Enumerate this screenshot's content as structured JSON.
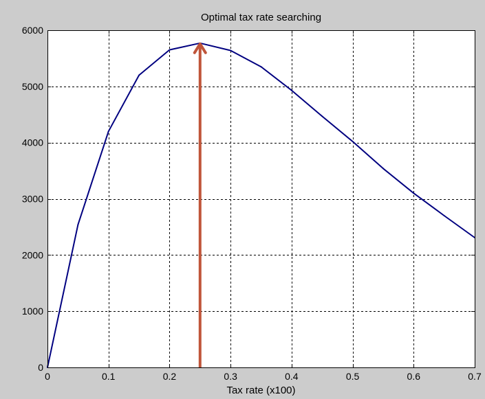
{
  "chart_data": {
    "type": "line",
    "title": "Optimal tax rate searching",
    "xlabel": "Tax rate (x100)",
    "ylabel": "",
    "xlim": [
      0,
      0.7
    ],
    "ylim": [
      0,
      6000
    ],
    "xticks": [
      0,
      0.1,
      0.2,
      0.3,
      0.4,
      0.5,
      0.6,
      0.7
    ],
    "xtick_labels": [
      "0",
      "0.1",
      "0.2",
      "0.3",
      "0.4",
      "0.5",
      "0.6",
      "0.7"
    ],
    "yticks": [
      0,
      1000,
      2000,
      3000,
      4000,
      5000,
      6000
    ],
    "ytick_labels": [
      "0",
      "1000",
      "2000",
      "3000",
      "4000",
      "5000",
      "6000"
    ],
    "grid": true,
    "series": [
      {
        "color": "#000080",
        "x": [
          0,
          0.05,
          0.1,
          0.15,
          0.2,
          0.25,
          0.3,
          0.35,
          0.4,
          0.45,
          0.5,
          0.55,
          0.6,
          0.65,
          0.7
        ],
        "y": [
          0,
          2540,
          4200,
          5200,
          5650,
          5770,
          5640,
          5350,
          4930,
          4470,
          4020,
          3540,
          3100,
          2700,
          2310
        ]
      }
    ],
    "annotations": [
      {
        "type": "arrow",
        "color": "#c0553a",
        "x": 0.25,
        "y_start": 0,
        "y_end": 5770
      }
    ]
  },
  "colors": {
    "figure_background": "#cccccc",
    "axes_background": "#ffffff",
    "grid": "#000000",
    "line": "#000080",
    "arrow": "#c0553a"
  }
}
